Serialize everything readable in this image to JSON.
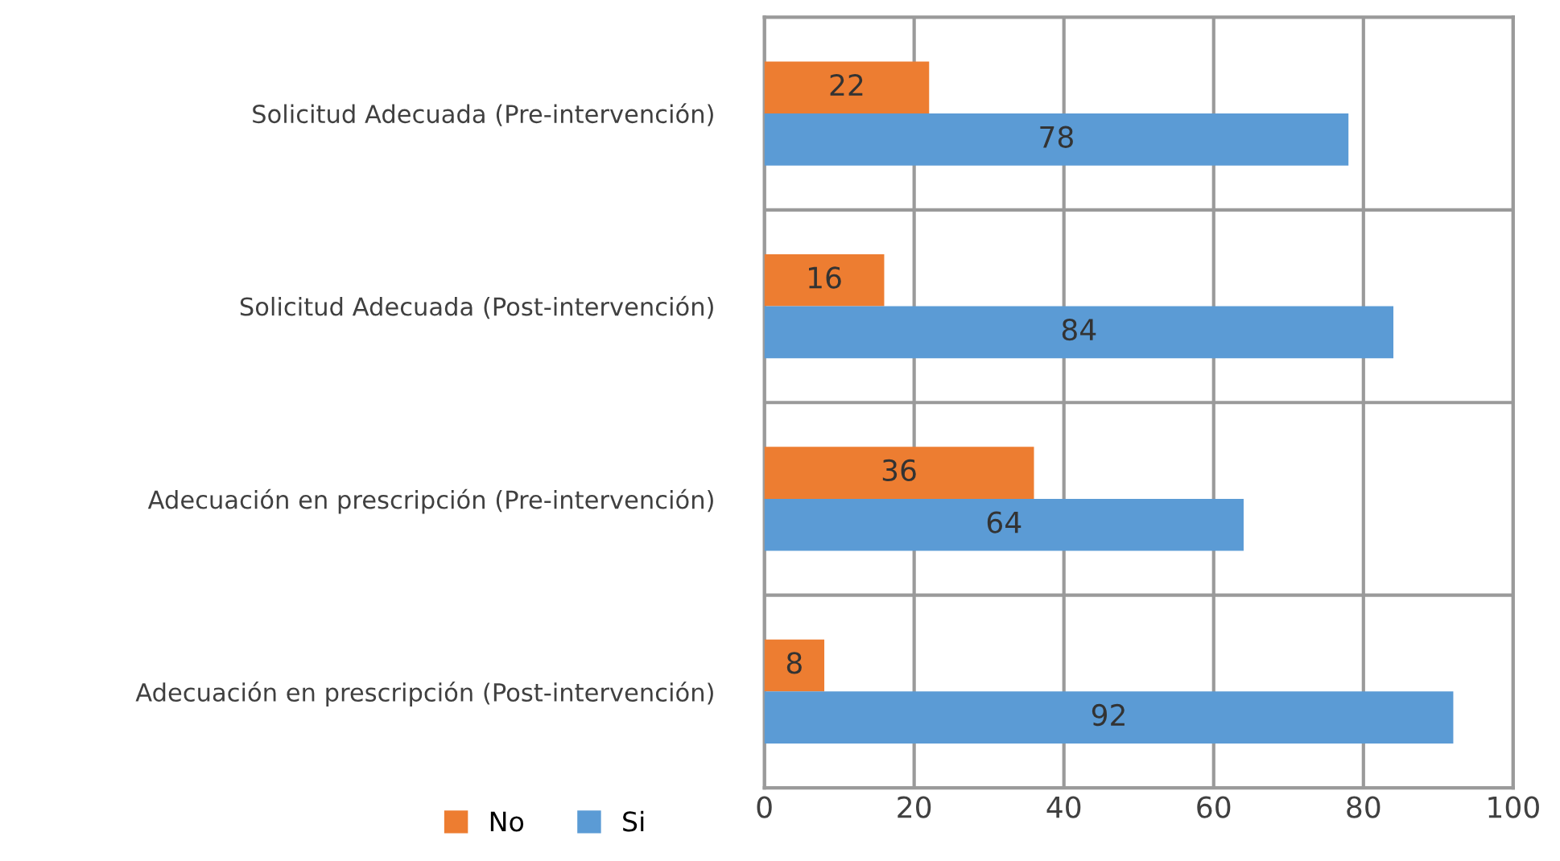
{
  "chart_data": {
    "type": "bar",
    "orientation": "horizontal",
    "categories": [
      "Solicitud Adecuada (Pre-intervención)",
      "Solicitud Adecuada (Post-intervención)",
      "Adecuación en prescripción (Pre-intervención)",
      "Adecuación en prescripción (Post-intervención)"
    ],
    "series": [
      {
        "name": "No",
        "color": "#ed7d31",
        "values": [
          22,
          16,
          36,
          8
        ]
      },
      {
        "name": "Si",
        "color": "#5b9bd5",
        "values": [
          78,
          84,
          64,
          92
        ]
      }
    ],
    "xlim": [
      0,
      100
    ],
    "xticks": [
      0,
      20,
      40,
      60,
      80,
      100
    ],
    "grid": true,
    "legend": "bottom left",
    "data_labels": true
  }
}
